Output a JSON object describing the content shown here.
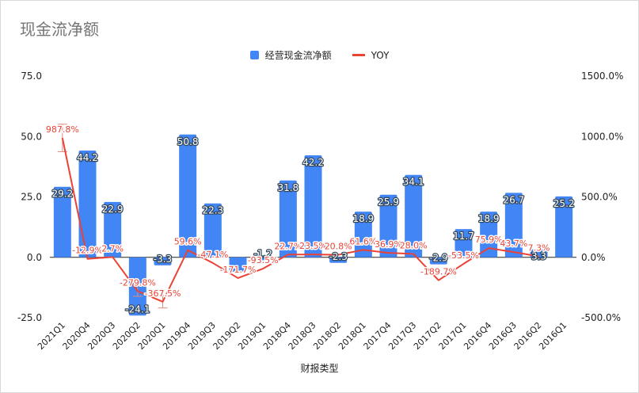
{
  "chart_data": {
    "type": "bar",
    "title": "现金流净额",
    "xlabel": "财报类型",
    "ylabel": "",
    "categories": [
      "2021Q1",
      "2020Q4",
      "2020Q3",
      "2020Q2",
      "2020Q1",
      "2019Q4",
      "2019Q3",
      "2019Q2",
      "2019Q1",
      "2018Q4",
      "2018Q3",
      "2018Q2",
      "2018Q1",
      "2017Q4",
      "2017Q3",
      "2017Q2",
      "2017Q1",
      "2016Q4",
      "2016Q3",
      "2016Q2",
      "2016Q1"
    ],
    "series": [
      {
        "name": "经营现金流净额",
        "kind": "bar",
        "axis": "left",
        "color": "#4285f4",
        "values": [
          29.2,
          44.2,
          22.9,
          -24.1,
          -3.3,
          50.8,
          22.3,
          -6.0,
          -1.2,
          31.8,
          42.2,
          -2.3,
          18.9,
          25.9,
          34.1,
          -2.9,
          11.7,
          18.9,
          26.7,
          3.3,
          25.2
        ],
        "labels": [
          "29.2",
          "44.2",
          "22.9",
          "-24.1",
          "-3.3",
          "50.8",
          "22.3",
          "",
          "-1.2",
          "31.8",
          "42.2",
          "-2.3",
          "18.9",
          "25.9",
          "34.1",
          "-2.9",
          "11.7",
          "18.9",
          "26.7",
          "3.3",
          "25.2"
        ]
      },
      {
        "name": "YOY",
        "kind": "line",
        "axis": "right",
        "color": "#ea4335",
        "values": [
          987.8,
          -12.9,
          2.7,
          -279.8,
          -367.5,
          59.6,
          -47.1,
          -171.7,
          -93.5,
          22.7,
          23.5,
          20.8,
          61.6,
          36.9,
          28.0,
          -189.7,
          -53.5,
          75.9,
          43.7,
          7.3,
          null
        ],
        "labels": [
          "987.8%",
          "-12.9%",
          "2.7%",
          "-279.8%",
          "-367.5%",
          "59.6%",
          "-47.1%",
          "-171.7%",
          "-93.5%",
          "22.7%",
          "23.5%",
          "20.8%",
          "61.6%",
          "36.9%",
          "28.0%",
          "-189.7%",
          "-53.5%",
          "75.9%",
          "43.7%",
          "7.3%",
          ""
        ]
      }
    ],
    "y_left": {
      "lim": [
        -25,
        75
      ],
      "ticks": [
        "-25.0",
        "0.0",
        "25.0",
        "50.0",
        "75.0"
      ],
      "tick_values": [
        -25,
        0,
        25,
        50,
        75
      ]
    },
    "y_right": {
      "lim": [
        -500,
        1500
      ],
      "ticks": [
        "-500.0%",
        "0.0%",
        "500.0%",
        "1000.0%",
        "1500.0%"
      ],
      "tick_values": [
        -500,
        0,
        500,
        1000,
        1500
      ]
    },
    "error_bars_on": [
      "2021Q1",
      "2020Q2",
      "2020Q1"
    ],
    "grid": false,
    "legend_position": "top-center"
  }
}
